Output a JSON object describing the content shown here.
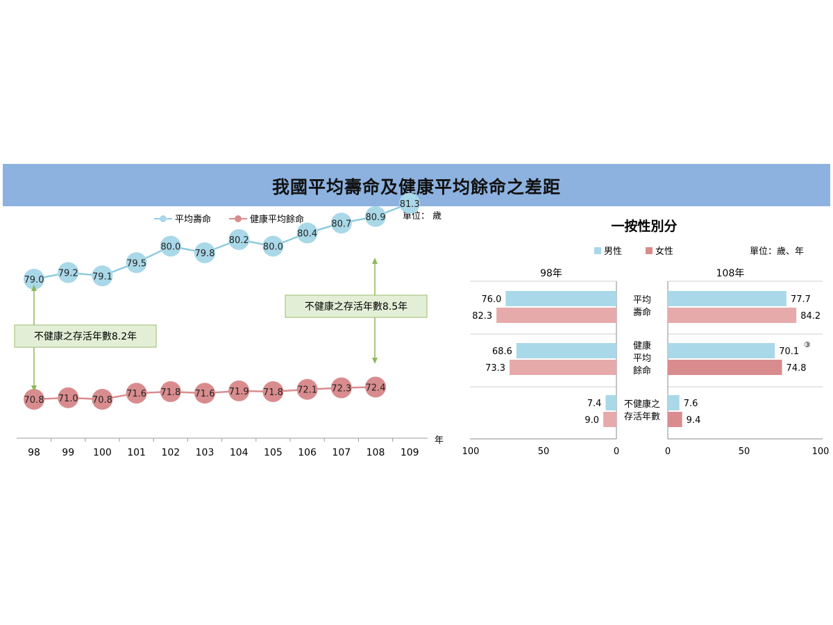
{
  "header": {
    "title": "我國平均壽命及健康平均餘命之差距"
  },
  "colors": {
    "banner": "#8db2e0",
    "life_expectancy": "#a9d8e8",
    "life_expectancy_line": "#8ccbe0",
    "healthy": "#d98c8e",
    "male": "#a9d8e8",
    "female": "#e6aaab",
    "female_dark": "#d98c8e",
    "annotation_fill": "#e2efd6",
    "annotation_border": "#9bbb6a",
    "arrow": "#8fb65a"
  },
  "chart_data": [
    {
      "type": "line",
      "legend": [
        "平均壽命",
        "健康平均餘命"
      ],
      "unit_label": "單位： 歲",
      "x_unit": "年",
      "x": [
        "98",
        "99",
        "100",
        "101",
        "102",
        "103",
        "104",
        "105",
        "106",
        "107",
        "108",
        "109"
      ],
      "series": [
        {
          "name": "平均壽命",
          "values": [
            79.0,
            79.2,
            79.1,
            79.5,
            80.0,
            79.8,
            80.2,
            80.0,
            80.4,
            80.7,
            80.9,
            81.3
          ]
        },
        {
          "name": "健康平均餘命",
          "values": [
            70.8,
            71.0,
            70.8,
            71.6,
            71.8,
            71.6,
            71.9,
            71.8,
            72.1,
            72.3,
            72.4,
            null
          ]
        }
      ],
      "value_labels": {
        "life": [
          "79.0",
          "79.2",
          "79.1",
          "79.5",
          "80.0",
          "79.8",
          "80.2",
          "80.0",
          "80.4",
          "80.7",
          "80.9",
          "81.3"
        ],
        "healthy": [
          "70.8",
          "71.0",
          "70.8",
          "71.6",
          "71.8",
          "71.6",
          "71.9",
          "71.8",
          "72.1",
          "72.3",
          "72.4"
        ]
      },
      "annotations": [
        {
          "text": "不健康之存活年數8.2年",
          "year": "98",
          "value": 8.2
        },
        {
          "text": "不健康之存活年數8.5年",
          "year": "108",
          "value": 8.5
        }
      ]
    },
    {
      "type": "bar",
      "title": "一按性別分",
      "legend": [
        "男性",
        "女性"
      ],
      "unit_label": "單位：歲、年",
      "categories": [
        "平均壽命",
        "健康平均餘命",
        "不健康之存活年數"
      ],
      "category_lines": [
        [
          "平均",
          "壽命"
        ],
        [
          "健康",
          "平均",
          "餘命"
        ],
        [
          "不健康之",
          "存活年數"
        ]
      ],
      "panels": [
        {
          "name": "98年",
          "male": [
            76.0,
            68.6,
            7.4
          ],
          "female": [
            82.3,
            73.3,
            9.0
          ],
          "male_labels": [
            "76.0",
            "68.6",
            "7.4"
          ],
          "female_labels": [
            "82.3",
            "73.3",
            "9.0"
          ],
          "axis_ticks": [
            "100",
            "50",
            "0"
          ]
        },
        {
          "name": "108年",
          "male": [
            77.7,
            70.1,
            7.6
          ],
          "female": [
            84.2,
            74.8,
            9.4
          ],
          "male_labels": [
            "77.7",
            "70.1",
            "7.6"
          ],
          "female_labels": [
            "84.2",
            "74.8",
            "9.4"
          ],
          "axis_ticks": [
            "0",
            "50",
            "100"
          ]
        }
      ],
      "xlim": [
        0,
        100
      ],
      "footnote_mark": "③"
    }
  ]
}
